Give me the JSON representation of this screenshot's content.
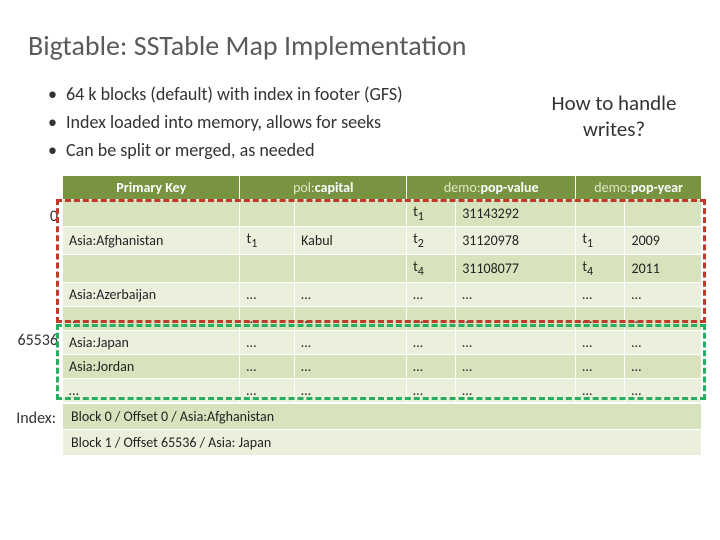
{
  "title": "Bigtable: SSTable Map Implementation",
  "bullets": [
    "64 k blocks (default) with index in footer (GFS)",
    "Index loaded into memory, allows for seeks",
    "Can be split or merged, as needed"
  ],
  "sidenote": "How to handle writes?",
  "offsets": {
    "block0": "0",
    "block1": "65536",
    "indexLabel": "Index:"
  },
  "headers": {
    "pk": "Primary Key",
    "col1_fam": "pol:",
    "col1_q": "capital",
    "col2_fam": "demo:",
    "col2_q": "pop-value",
    "col3_fam": "demo:",
    "col3_q": "pop-year"
  },
  "rows": [
    {
      "pk": "",
      "c1t": "",
      "c1v": "",
      "c2t": "t",
      "c2s": "1",
      "c2v": "31143292",
      "c3t": "",
      "c3s": "",
      "c3v": ""
    },
    {
      "pk": "Asia:Afghanistan",
      "c1t": "t",
      "c1s": "1",
      "c1v": "Kabul",
      "c2t": "t",
      "c2s": "2",
      "c2v": "31120978",
      "c3t": "t",
      "c3s": "1",
      "c3v": "2009"
    },
    {
      "pk": "",
      "c1t": "",
      "c1v": "",
      "c2t": "t",
      "c2s": "4",
      "c2v": "31108077",
      "c3t": "t",
      "c3s": "4",
      "c3v": "2011"
    },
    {
      "pk": "Asia:Azerbaijan",
      "c1t": "…",
      "c1v": "…",
      "c2t": "…",
      "c2v": "…",
      "c3t": "…",
      "c3v": "…"
    },
    {
      "pk": "…",
      "c1t": "…",
      "c1v": "…",
      "c2t": "…",
      "c2v": "…",
      "c3t": "…",
      "c3v": "…"
    },
    {
      "pk": "Asia:Japan",
      "c1t": "…",
      "c1v": "…",
      "c2t": "…",
      "c2v": "…",
      "c3t": "…",
      "c3v": "…"
    },
    {
      "pk": "Asia:Jordan",
      "c1t": "…",
      "c1v": "…",
      "c2t": "…",
      "c2v": "…",
      "c3t": "…",
      "c3v": "…"
    },
    {
      "pk": "…",
      "c1t": "…",
      "c1v": "…",
      "c2t": "…",
      "c2v": "…",
      "c3t": "…",
      "c3v": "…"
    }
  ],
  "indexRows": [
    "Block 0 / Offset 0 / Asia:Afghanistan",
    "Block 1 / Offset 65536 / Asia: Japan"
  ],
  "colors": {
    "headerBg": "#789440",
    "rowEven": "#d7e3bc",
    "rowOdd": "#ebf0dd",
    "dashRed": "#c0392b",
    "dashGreen": "#27ae60"
  }
}
